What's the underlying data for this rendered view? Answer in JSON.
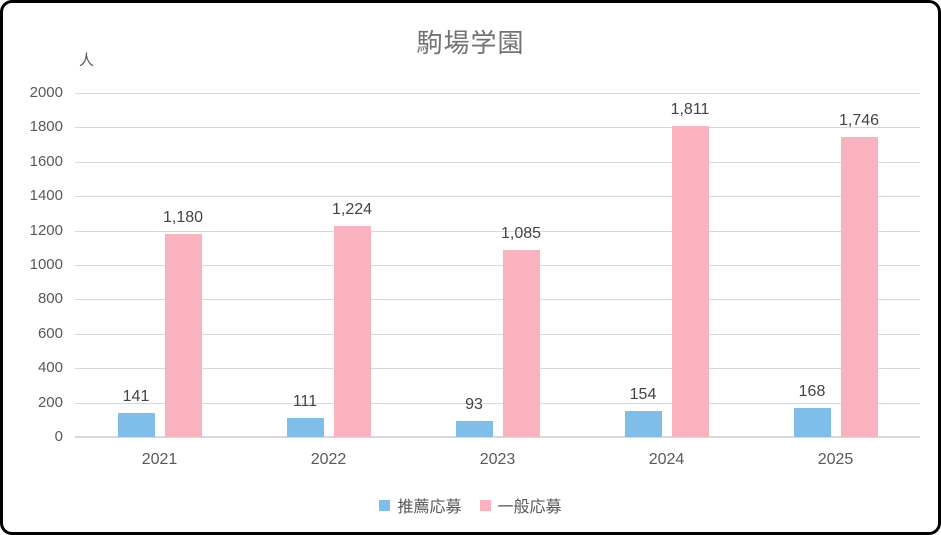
{
  "chart_data": {
    "type": "bar",
    "title": "駒場学園",
    "ylabel": "人",
    "xlabel": "",
    "categories": [
      "2021",
      "2022",
      "2023",
      "2024",
      "2025"
    ],
    "series": [
      {
        "name": "推薦応募",
        "color": "#7FBEE9",
        "values": [
          141,
          111,
          93,
          154,
          168
        ],
        "labels": [
          "141",
          "111",
          "93",
          "154",
          "168"
        ]
      },
      {
        "name": "一般応募",
        "color": "#FAB3BE",
        "values": [
          1180,
          1224,
          1085,
          1811,
          1746
        ],
        "labels": [
          "1,180",
          "1,224",
          "1,085",
          "1,811",
          "1,746"
        ]
      }
    ],
    "ylim": [
      0,
      2000
    ],
    "yticks": [
      0,
      200,
      400,
      600,
      800,
      1000,
      1200,
      1400,
      1600,
      1800,
      2000
    ],
    "grid": true,
    "legend_position": "bottom"
  },
  "style_colors": {
    "frame_border": "#000000",
    "background": "#ffffff",
    "gridline": "#d9d9d9",
    "axis_text": "#595959",
    "data_label_text": "#444444",
    "title_text": "#737373"
  }
}
